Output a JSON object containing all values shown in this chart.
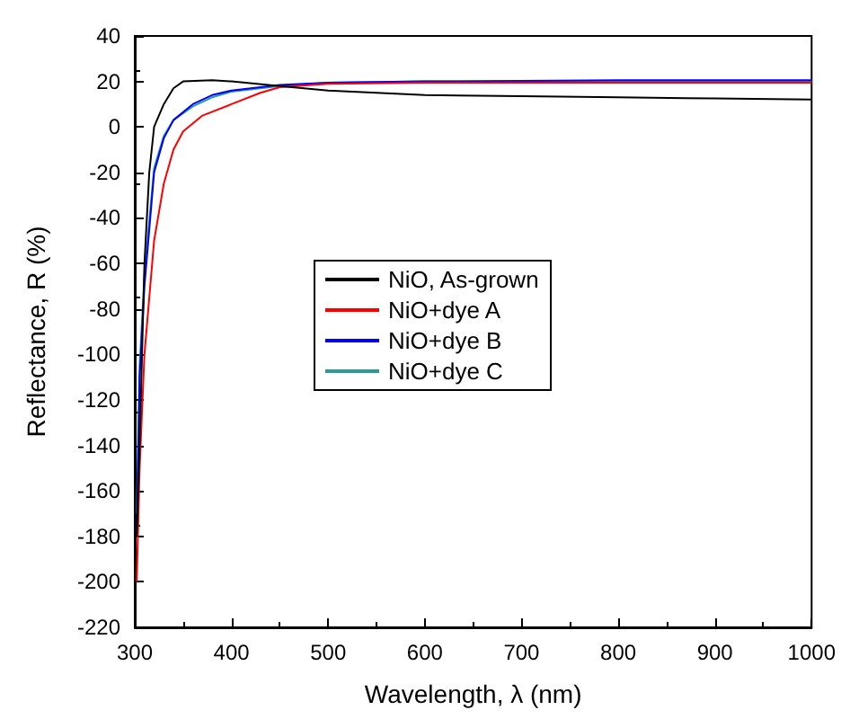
{
  "chart_data": {
    "type": "line",
    "xlabel": "Wavelength, λ (nm)",
    "ylabel": "Reflectance, R (%)",
    "xlim": [
      300,
      1000
    ],
    "ylim": [
      -220,
      40
    ],
    "xticks": [
      300,
      400,
      500,
      600,
      700,
      800,
      900,
      1000
    ],
    "yticks": [
      -220,
      -200,
      -180,
      -160,
      -140,
      -120,
      -100,
      -80,
      -60,
      -40,
      -20,
      0,
      20,
      40
    ],
    "legend": "center",
    "grid": false,
    "marker": "none",
    "line_style": "solid",
    "series": [
      {
        "name": "NiO, As-grown",
        "color": "#000000",
        "x": [
          302,
          305,
          310,
          315,
          320,
          330,
          340,
          350,
          380,
          400,
          450,
          500,
          600,
          700,
          800,
          900,
          1000
        ],
        "values": [
          -180,
          -140,
          -60,
          -20,
          0,
          10,
          17,
          20,
          20.5,
          20,
          18,
          16,
          14,
          13.5,
          13,
          12.5,
          12
        ]
      },
      {
        "name": "NiO+dye A",
        "color": "#ff0000",
        "x": [
          302,
          305,
          310,
          320,
          330,
          340,
          350,
          370,
          400,
          430,
          450,
          500,
          600,
          800,
          1000
        ],
        "values": [
          -200,
          -150,
          -100,
          -50,
          -25,
          -10,
          -2,
          5,
          10,
          15,
          17.5,
          19,
          19.5,
          19.5,
          19.5
        ]
      },
      {
        "name": "NiO+dye B",
        "color": "#0000ff",
        "x": [
          302,
          305,
          310,
          320,
          330,
          340,
          360,
          380,
          400,
          450,
          500,
          600,
          800,
          1000
        ],
        "values": [
          -180,
          -110,
          -70,
          -20,
          -5,
          3,
          10,
          14,
          16,
          18.5,
          19.5,
          20,
          20.5,
          20.5
        ]
      },
      {
        "name": "NiO+dye C",
        "color": "#2a9a9a",
        "x": [
          302,
          305,
          310,
          320,
          330,
          340,
          360,
          380,
          400,
          450,
          500,
          600,
          800,
          1000
        ],
        "values": [
          -170,
          -105,
          -65,
          -18,
          -4,
          3,
          9,
          13,
          15.5,
          18,
          19.5,
          20,
          20,
          20
        ]
      }
    ]
  }
}
